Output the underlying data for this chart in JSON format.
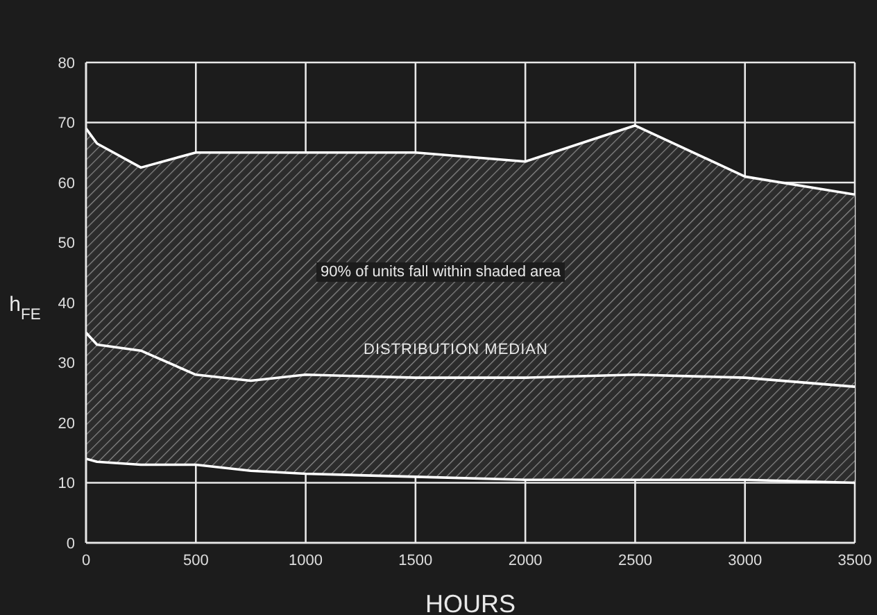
{
  "chart_data": {
    "type": "line",
    "xlabel": "HOURS",
    "ylabel": "h$_{FE}$",
    "x": [
      0,
      50,
      250,
      500,
      750,
      1000,
      1500,
      2000,
      2500,
      3000,
      3500
    ],
    "series": [
      {
        "color": "#ffffff",
        "values": [
          69,
          66.5,
          62.5,
          65,
          65,
          65,
          65,
          63.5,
          69.5,
          61,
          58
        ]
      },
      {
        "color": "#ffffff",
        "values": [
          35,
          33,
          32,
          28,
          27,
          28,
          27.5,
          27.5,
          28,
          27.5,
          26
        ],
        "lower": [
          14,
          13.5,
          13,
          13,
          12,
          11.5,
          11,
          10.5,
          10.5,
          10.5,
          10
        ],
        "upper": [
          69,
          66.5,
          62.5,
          65,
          65,
          65,
          65,
          63.5,
          69.5,
          61,
          58
        ]
      },
      {
        "color": "#ffffff",
        "values": [
          14,
          13.5,
          13,
          13,
          12,
          11.5,
          11,
          10.5,
          10.5,
          10.5,
          10
        ]
      }
    ],
    "annotations": [
      "90% of units fall within shaded area",
      "DISTRIBUTION MEDIAN"
    ],
    "xlim": [
      0,
      3500
    ],
    "xticks": [
      0,
      500,
      1000,
      1500,
      2000,
      2500,
      3000,
      3500
    ],
    "ylim": [
      0,
      80
    ],
    "yticks": [
      0,
      10,
      20,
      30,
      40,
      50,
      60,
      70,
      80
    ],
    "grid": true,
    "legend": false,
    "marker": "none",
    "line_style": "solid"
  }
}
